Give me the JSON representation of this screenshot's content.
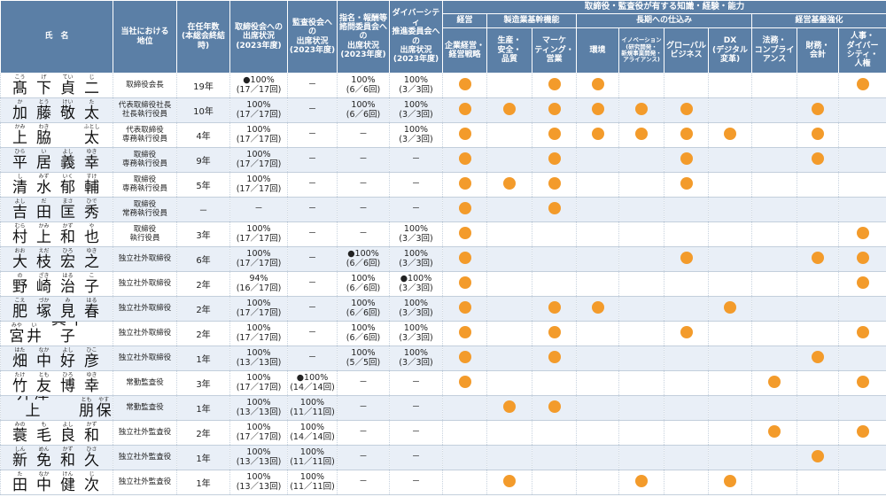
{
  "headers": {
    "name": "氏　名",
    "position": "当社における\n地位",
    "tenure": "在任年数\n(本総会終結時)",
    "board_att": "取締役会への\n出席状況\n(2023年度)",
    "audit_att": "監査役会への\n出席状況\n(2023年度)",
    "nom_att": "指名・報酬等\n諮問委員会への\n出席状況\n(2023年度)",
    "div_att": "ダイバーシティ\n推進委員会への\n出席状況\n(2023年度)",
    "skills_title": "取締役・監査役が有する知識・経験・能力",
    "groups": [
      "経営",
      "製造業基幹機能",
      "長期への仕込み",
      "経営基盤強化"
    ],
    "skills": [
      "企業経営・\n経営戦略",
      "生産・\n安全・\n品質",
      "マーケ\nティング・\n営業",
      "環境",
      "イノベーション\n(研究開発・\n新規事業開発・\nアライアンス)",
      "グローバル\nビジネス",
      "DX\n(デジタル\n変革)",
      "法務・\nコンプライ\nアンス",
      "財務・\n会計",
      "人事・\nダイバー\nシティ・\n人権"
    ]
  },
  "marker_symbol": "●",
  "dot_color": "#f39b2b",
  "rows": [
    {
      "name": [
        [
          "髙",
          "こう"
        ],
        [
          "下",
          "げ"
        ],
        [
          "貞",
          "てい"
        ],
        [
          "二",
          "じ"
        ]
      ],
      "position": "取締役会長",
      "tenure": "19年",
      "board": "●100%\n(17／17回)",
      "audit": "－",
      "nom": "100%\n(6／6回)",
      "div": "100%\n(3／3回)",
      "skills": [
        1,
        0,
        1,
        1,
        0,
        0,
        0,
        0,
        0,
        1
      ]
    },
    {
      "name": [
        [
          "加",
          "か"
        ],
        [
          "藤",
          "とう"
        ],
        [
          "敬",
          "けい"
        ],
        [
          "太",
          "た"
        ]
      ],
      "position": "代表取締役社長\n社長執行役員",
      "tenure": "10年",
      "board": "100%\n(17／17回)",
      "audit": "－",
      "nom": "100%\n(6／6回)",
      "div": "100%\n(3／3回)",
      "skills": [
        1,
        1,
        1,
        1,
        1,
        1,
        0,
        0,
        1,
        0
      ]
    },
    {
      "name": [
        [
          "上",
          "かみ"
        ],
        [
          "脇",
          "わき"
        ],
        [
          "",
          ""
        ],
        [
          "太",
          "ふとし"
        ]
      ],
      "position": "代表取締役\n専務執行役員",
      "tenure": "4年",
      "board": "100%\n(17／17回)",
      "audit": "－",
      "nom": "－",
      "div": "100%\n(3／3回)",
      "skills": [
        1,
        0,
        1,
        1,
        1,
        1,
        1,
        0,
        1,
        0
      ]
    },
    {
      "name": [
        [
          "平",
          "ひら"
        ],
        [
          "居",
          "い"
        ],
        [
          "義",
          "よし"
        ],
        [
          "幸",
          "ゆき"
        ]
      ],
      "position": "取締役\n専務執行役員",
      "tenure": "9年",
      "board": "100%\n(17／17回)",
      "audit": "－",
      "nom": "－",
      "div": "－",
      "skills": [
        1,
        0,
        1,
        0,
        0,
        1,
        0,
        0,
        1,
        0
      ]
    },
    {
      "name": [
        [
          "清",
          "し"
        ],
        [
          "水",
          "みず"
        ],
        [
          "郁",
          "いく"
        ],
        [
          "輔",
          "すけ"
        ]
      ],
      "position": "取締役\n専務執行役員",
      "tenure": "5年",
      "board": "100%\n(17／17回)",
      "audit": "－",
      "nom": "－",
      "div": "－",
      "skills": [
        1,
        1,
        1,
        0,
        0,
        1,
        0,
        0,
        0,
        0
      ]
    },
    {
      "name": [
        [
          "吉",
          "よし"
        ],
        [
          "田",
          "だ"
        ],
        [
          "匡",
          "まさ"
        ],
        [
          "秀",
          "ひで"
        ]
      ],
      "position": "取締役\n常務執行役員",
      "tenure": "－",
      "board": "－",
      "audit": "－",
      "nom": "－",
      "div": "－",
      "skills": [
        1,
        0,
        1,
        0,
        0,
        0,
        0,
        0,
        0,
        0
      ]
    },
    {
      "name": [
        [
          "村",
          "むら"
        ],
        [
          "上",
          "かみ"
        ],
        [
          "和",
          "かず"
        ],
        [
          "也",
          "や"
        ]
      ],
      "position": "取締役\n執行役員",
      "tenure": "3年",
      "board": "100%\n(17／17回)",
      "audit": "－",
      "nom": "－",
      "div": "100%\n(3／3回)",
      "skills": [
        1,
        0,
        0,
        0,
        0,
        0,
        0,
        0,
        0,
        1
      ]
    },
    {
      "name": [
        [
          "大",
          "おお"
        ],
        [
          "枝",
          "えだ"
        ],
        [
          "宏",
          "ひろ"
        ],
        [
          "之",
          "ゆき"
        ]
      ],
      "position": "独立社外取締役",
      "tenure": "6年",
      "board": "100%\n(17／17回)",
      "audit": "－",
      "nom": "●100%\n(6／6回)",
      "div": "100%\n(3／3回)",
      "skills": [
        1,
        0,
        0,
        0,
        0,
        1,
        0,
        0,
        1,
        1
      ]
    },
    {
      "name": [
        [
          "野",
          "の"
        ],
        [
          "崎",
          "ざき"
        ],
        [
          "治",
          "はる"
        ],
        [
          "子",
          "こ"
        ]
      ],
      "position": "独立社外取締役",
      "tenure": "2年",
      "board": "94%\n(16／17回)",
      "audit": "－",
      "nom": "100%\n(6／6回)",
      "div": "●100%\n(3／3回)",
      "skills": [
        1,
        0,
        0,
        0,
        0,
        0,
        0,
        0,
        0,
        1
      ]
    },
    {
      "name": [
        [
          "肥",
          "こえ"
        ],
        [
          "塚",
          "づか"
        ],
        [
          "見",
          "み"
        ],
        [
          "春",
          "はる"
        ]
      ],
      "position": "独立社外取締役",
      "tenure": "2年",
      "board": "100%\n(17／17回)",
      "audit": "－",
      "nom": "100%\n(6／6回)",
      "div": "100%\n(3／3回)",
      "skills": [
        1,
        0,
        1,
        1,
        0,
        0,
        1,
        0,
        0,
        0
      ]
    },
    {
      "name": [
        [
          "宮",
          "みや"
        ],
        [
          "井",
          "い"
        ],
        [
          "真千子",
          "まちこ"
        ],
        [
          "",
          ""
        ]
      ],
      "position": "独立社外取締役",
      "tenure": "2年",
      "board": "100%\n(17／17回)",
      "audit": "－",
      "nom": "100%\n(6／6回)",
      "div": "100%\n(3／3回)",
      "skills": [
        1,
        0,
        1,
        0,
        0,
        1,
        0,
        0,
        0,
        1
      ]
    },
    {
      "name": [
        [
          "畑",
          "はた"
        ],
        [
          "中",
          "なか"
        ],
        [
          "好",
          "よし"
        ],
        [
          "彦",
          "ひこ"
        ]
      ],
      "position": "独立社外取締役",
      "tenure": "1年",
      "board": "100%\n(13／13回)",
      "audit": "－",
      "nom": "100%\n(5／5回)",
      "div": "100%\n(3／3回)",
      "skills": [
        1,
        0,
        1,
        0,
        0,
        0,
        0,
        0,
        1,
        0
      ]
    },
    {
      "name": [
        [
          "竹",
          "たけ"
        ],
        [
          "友",
          "とも"
        ],
        [
          "博",
          "ひろ"
        ],
        [
          "幸",
          "ゆき"
        ]
      ],
      "position": "常勤監査役",
      "tenure": "3年",
      "board": "100%\n(17／17回)",
      "audit": "●100%\n(14／14回)",
      "nom": "－",
      "div": "－",
      "skills": [
        1,
        0,
        0,
        0,
        0,
        0,
        0,
        1,
        0,
        1
      ]
    },
    {
      "name": [
        [
          "井津上",
          "いづかみ"
        ],
        [
          "",
          ""
        ],
        [
          "朋",
          "とも"
        ],
        [
          "保",
          "やす"
        ]
      ],
      "position": "常勤監査役",
      "tenure": "1年",
      "board": "100%\n(13／13回)",
      "audit": "100%\n(11／11回)",
      "nom": "－",
      "div": "－",
      "skills": [
        0,
        1,
        1,
        0,
        0,
        0,
        0,
        0,
        0,
        0
      ]
    },
    {
      "name": [
        [
          "蓑",
          "みの"
        ],
        [
          "毛",
          "も"
        ],
        [
          "良",
          "よし"
        ],
        [
          "和",
          "かず"
        ]
      ],
      "position": "独立社外監査役",
      "tenure": "2年",
      "board": "100%\n(17／17回)",
      "audit": "100%\n(14／14回)",
      "nom": "－",
      "div": "－",
      "skills": [
        0,
        0,
        0,
        0,
        0,
        0,
        0,
        1,
        0,
        1
      ]
    },
    {
      "name": [
        [
          "新",
          "しん"
        ],
        [
          "免",
          "めん"
        ],
        [
          "和",
          "かず"
        ],
        [
          "久",
          "ひさ"
        ]
      ],
      "position": "独立社外監査役",
      "tenure": "1年",
      "board": "100%\n(13／13回)",
      "audit": "100%\n(11／11回)",
      "nom": "－",
      "div": "－",
      "skills": [
        0,
        0,
        0,
        0,
        0,
        0,
        0,
        0,
        1,
        0
      ]
    },
    {
      "name": [
        [
          "田",
          "た"
        ],
        [
          "中",
          "なか"
        ],
        [
          "健",
          "けん"
        ],
        [
          "次",
          "じ"
        ]
      ],
      "position": "独立社外監査役",
      "tenure": "1年",
      "board": "100%\n(13／13回)",
      "audit": "100%\n(11／11回)",
      "nom": "－",
      "div": "－",
      "skills": [
        0,
        1,
        0,
        0,
        1,
        0,
        1,
        0,
        0,
        0
      ]
    }
  ]
}
